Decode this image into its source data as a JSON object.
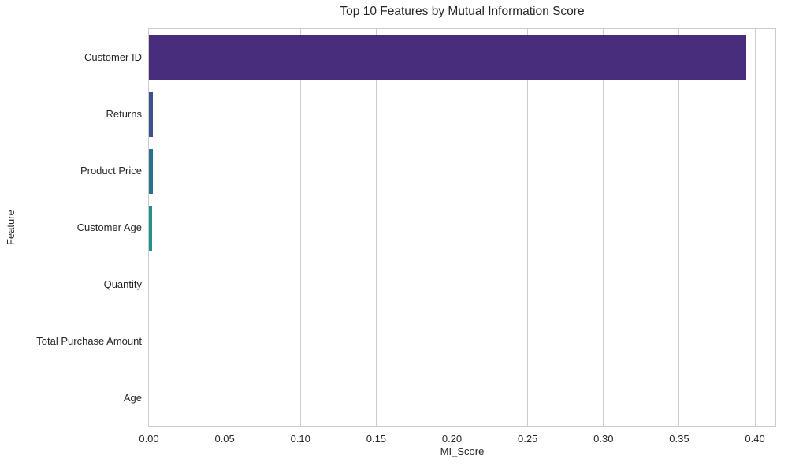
{
  "chart_data": {
    "type": "bar",
    "orientation": "horizontal",
    "title": "Top 10 Features by Mutual Information Score",
    "xlabel": "MI_Score",
    "ylabel": "Feature",
    "categories": [
      "Customer ID",
      "Returns",
      "Product Price",
      "Customer Age",
      "Quantity",
      "Total Purchase Amount",
      "Age"
    ],
    "values": [
      0.394,
      0.0028,
      0.0024,
      0.0023,
      0.0,
      0.0,
      0.0
    ],
    "bar_colors": [
      "#472d7b",
      "#3b528b",
      "#2d708e",
      "#21918c",
      "#27ad81",
      "#5cc863",
      "#aadc32"
    ],
    "palette": "viridis",
    "xlim": [
      0.0,
      0.4135
    ],
    "xticks": [
      0.0,
      0.05,
      0.1,
      0.15,
      0.2,
      0.25,
      0.3,
      0.35,
      0.4
    ],
    "xtick_labels": [
      "0.00",
      "0.05",
      "0.10",
      "0.15",
      "0.20",
      "0.25",
      "0.30",
      "0.35",
      "0.40"
    ],
    "grid": "vertical",
    "grid_color": "#cccccc",
    "spine_color": "#cccccc",
    "text_color": "#262626",
    "background": "#ffffff",
    "legend": "none"
  }
}
